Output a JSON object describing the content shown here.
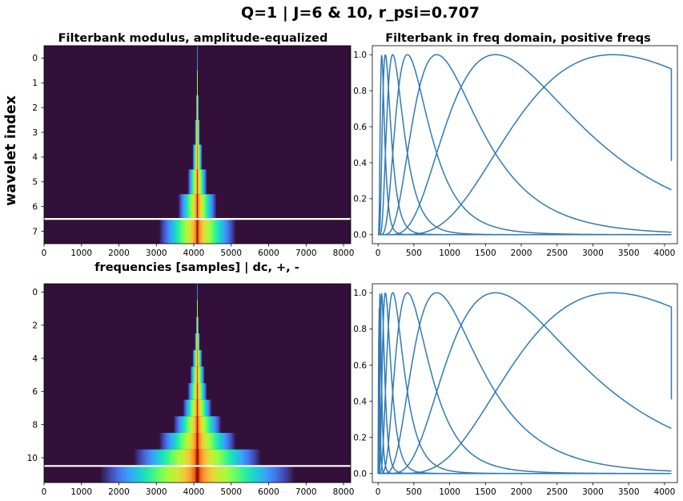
{
  "figure": {
    "suptitle": "Q=1 | J=6 & 10, r_psi=0.707",
    "ylabel": "wavelet index"
  },
  "colors": {
    "line": "#2f7ab5",
    "background": "#32103a",
    "separator": "#ffffff"
  },
  "chart_data": [
    {
      "type": "heatmap",
      "title": "Filterbank modulus, amplitude-equalized",
      "xlabel": "frequencies [samples] | dc, +, -",
      "x_ticks": [
        "0",
        "1000",
        "2000",
        "3000",
        "4000",
        "5000",
        "6000",
        "7000",
        "8000"
      ],
      "x_tick_values": [
        0,
        1000,
        2000,
        3000,
        4000,
        5000,
        6000,
        7000,
        8000
      ],
      "y_ticks": [
        "0",
        "1",
        "2",
        "3",
        "4",
        "5",
        "6",
        "7"
      ],
      "y_tick_values": [
        0,
        1,
        2,
        3,
        4,
        5,
        6,
        7
      ],
      "xlim": [
        0,
        8192
      ],
      "ylim": [
        -0.5,
        7.5
      ],
      "rows": 8,
      "row_halfwidths": [
        8,
        16,
        32,
        64,
        128,
        256,
        512,
        1024
      ],
      "center": 4096,
      "separator_y": 6.5,
      "colormap": "turbo"
    },
    {
      "type": "line",
      "title": "Filterbank in freq domain, positive freqs",
      "x_ticks": [
        "0",
        "500",
        "1000",
        "1500",
        "2000",
        "2500",
        "3000",
        "3500",
        "4000"
      ],
      "x_tick_values": [
        0,
        500,
        1000,
        1500,
        2000,
        2500,
        3000,
        3500,
        4000
      ],
      "y_ticks": [
        "0.0",
        "0.2",
        "0.4",
        "0.6",
        "0.8",
        "1.0"
      ],
      "y_tick_values": [
        0,
        0.2,
        0.4,
        0.6,
        0.8,
        1.0
      ],
      "xlim": [
        -80,
        4180
      ],
      "ylim": [
        -0.05,
        1.05
      ],
      "peaks": [
        3277,
        1638,
        819,
        410,
        205,
        102,
        51
      ],
      "end_x": 4096,
      "end_drop": [
        0.82,
        0.41
      ]
    },
    {
      "type": "heatmap",
      "y_ticks": [
        "0",
        "2",
        "4",
        "6",
        "8",
        "10"
      ],
      "y_tick_values": [
        0,
        2,
        4,
        6,
        8,
        10
      ],
      "x_ticks": [
        "0",
        "1000",
        "2000",
        "3000",
        "4000",
        "5000",
        "6000",
        "7000",
        "8000"
      ],
      "x_tick_values": [
        0,
        1000,
        2000,
        3000,
        4000,
        5000,
        6000,
        7000,
        8000
      ],
      "xlim": [
        0,
        8192
      ],
      "ylim": [
        -0.5,
        11.5
      ],
      "rows": 12,
      "row_halfwidths": [
        8,
        16,
        32,
        64,
        128,
        192,
        256,
        384,
        640,
        1024,
        1700,
        2600
      ],
      "center": 4096,
      "separator_y": 10.5,
      "colormap": "turbo"
    },
    {
      "type": "line",
      "x_ticks": [
        "0",
        "500",
        "1000",
        "1500",
        "2000",
        "2500",
        "3000",
        "3500",
        "4000"
      ],
      "x_tick_values": [
        0,
        500,
        1000,
        1500,
        2000,
        2500,
        3000,
        3500,
        4000
      ],
      "y_ticks": [
        "0.0",
        "0.2",
        "0.4",
        "0.6",
        "0.8",
        "1.0"
      ],
      "y_tick_values": [
        0,
        0.2,
        0.4,
        0.6,
        0.8,
        1.0
      ],
      "xlim": [
        -80,
        4180
      ],
      "ylim": [
        -0.05,
        1.05
      ],
      "peaks": [
        3277,
        1638,
        819,
        410,
        205,
        102,
        51,
        26,
        13
      ],
      "end_x": 4096,
      "end_drop": [
        0.82,
        0.41
      ]
    }
  ]
}
